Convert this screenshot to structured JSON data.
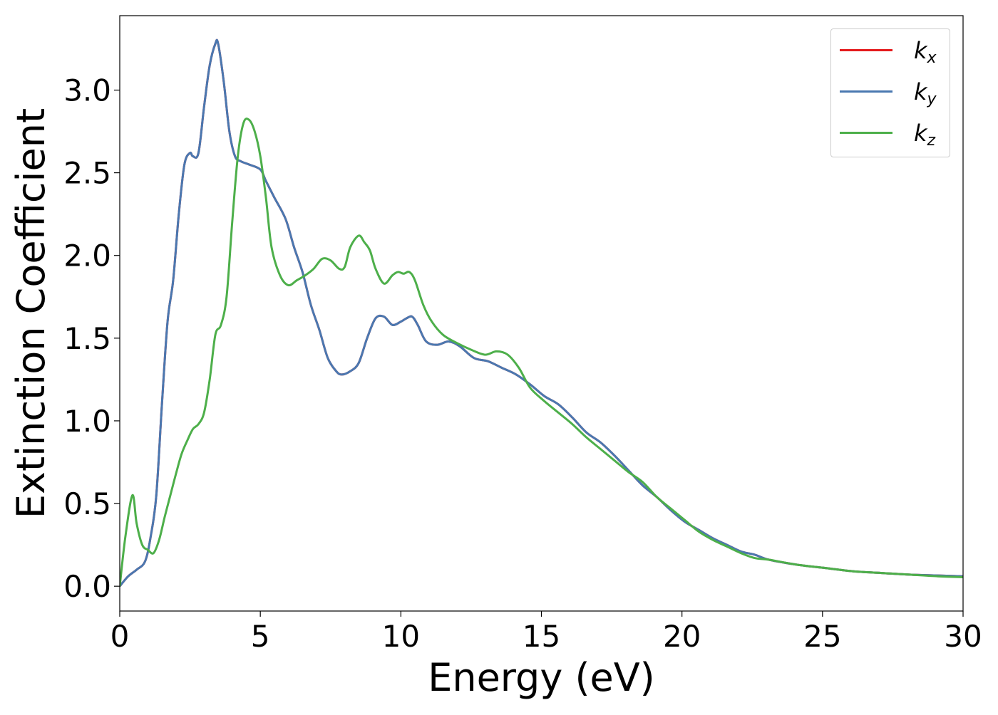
{
  "chart_data": {
    "type": "line",
    "title": "",
    "xlabel": "Energy (eV)",
    "ylabel": "Extinction Coefficient",
    "xlim": [
      0,
      30
    ],
    "ylim": [
      -0.15,
      3.45
    ],
    "xticks": [
      0,
      5,
      10,
      15,
      20,
      25,
      30
    ],
    "xtick_labels": [
      "0",
      "5",
      "10",
      "15",
      "20",
      "25",
      "30"
    ],
    "yticks": [
      0.0,
      0.5,
      1.0,
      1.5,
      2.0,
      2.5,
      3.0
    ],
    "ytick_labels": [
      "0.0",
      "0.5",
      "1.0",
      "1.5",
      "2.0",
      "2.5",
      "3.0"
    ],
    "grid": false,
    "legend_position": "top-right",
    "series": [
      {
        "name": "k_x",
        "label_base": "k",
        "label_sub": "x",
        "color": "#e41a1c",
        "x": [
          0,
          0.3,
          0.6,
          0.9,
          1.1,
          1.3,
          1.5,
          1.7,
          1.9,
          2.1,
          2.3,
          2.5,
          2.6,
          2.8,
          3.0,
          3.2,
          3.4,
          3.5,
          3.7,
          3.9,
          4.1,
          4.3,
          4.6,
          5.0,
          5.2,
          5.5,
          5.9,
          6.2,
          6.5,
          6.8,
          7.1,
          7.4,
          7.7,
          7.9,
          8.2,
          8.5,
          8.8,
          9.1,
          9.4,
          9.7,
          10.0,
          10.2,
          10.4,
          10.6,
          10.9,
          11.3,
          11.7,
          12.1,
          12.6,
          13.1,
          13.6,
          14.1,
          14.6,
          15.1,
          15.6,
          16.1,
          16.6,
          17.1,
          17.6,
          18.1,
          18.6,
          19.1,
          19.6,
          20.1,
          20.6,
          21.1,
          21.6,
          22.1,
          22.6,
          23.1,
          24.1,
          25.1,
          26.1,
          27.1,
          28.1,
          29.1,
          30.0
        ],
        "y": [
          0.0,
          0.06,
          0.1,
          0.15,
          0.3,
          0.55,
          1.1,
          1.6,
          1.85,
          2.25,
          2.55,
          2.62,
          2.6,
          2.62,
          2.9,
          3.15,
          3.28,
          3.28,
          3.05,
          2.75,
          2.6,
          2.57,
          2.55,
          2.52,
          2.45,
          2.35,
          2.22,
          2.05,
          1.9,
          1.7,
          1.55,
          1.38,
          1.3,
          1.28,
          1.3,
          1.35,
          1.5,
          1.62,
          1.63,
          1.58,
          1.6,
          1.62,
          1.63,
          1.58,
          1.48,
          1.46,
          1.48,
          1.45,
          1.38,
          1.36,
          1.32,
          1.28,
          1.22,
          1.15,
          1.1,
          1.02,
          0.93,
          0.87,
          0.79,
          0.7,
          0.61,
          0.54,
          0.46,
          0.39,
          0.34,
          0.29,
          0.25,
          0.21,
          0.19,
          0.16,
          0.13,
          0.11,
          0.09,
          0.08,
          0.07,
          0.065,
          0.06
        ]
      },
      {
        "name": "k_y",
        "label_base": "k",
        "label_sub": "y",
        "color": "#4a78b0",
        "x": [
          0,
          0.3,
          0.6,
          0.9,
          1.1,
          1.3,
          1.5,
          1.7,
          1.9,
          2.1,
          2.3,
          2.5,
          2.6,
          2.8,
          3.0,
          3.2,
          3.4,
          3.5,
          3.7,
          3.9,
          4.1,
          4.3,
          4.6,
          5.0,
          5.2,
          5.5,
          5.9,
          6.2,
          6.5,
          6.8,
          7.1,
          7.4,
          7.7,
          7.9,
          8.2,
          8.5,
          8.8,
          9.1,
          9.4,
          9.7,
          10.0,
          10.2,
          10.4,
          10.6,
          10.9,
          11.3,
          11.7,
          12.1,
          12.6,
          13.1,
          13.6,
          14.1,
          14.6,
          15.1,
          15.6,
          16.1,
          16.6,
          17.1,
          17.6,
          18.1,
          18.6,
          19.1,
          19.6,
          20.1,
          20.6,
          21.1,
          21.6,
          22.1,
          22.6,
          23.1,
          24.1,
          25.1,
          26.1,
          27.1,
          28.1,
          29.1,
          30.0
        ],
        "y": [
          0.0,
          0.06,
          0.1,
          0.15,
          0.3,
          0.55,
          1.1,
          1.6,
          1.85,
          2.25,
          2.55,
          2.62,
          2.6,
          2.62,
          2.9,
          3.15,
          3.28,
          3.28,
          3.05,
          2.75,
          2.6,
          2.57,
          2.55,
          2.52,
          2.45,
          2.35,
          2.22,
          2.05,
          1.9,
          1.7,
          1.55,
          1.38,
          1.3,
          1.28,
          1.3,
          1.35,
          1.5,
          1.62,
          1.63,
          1.58,
          1.6,
          1.62,
          1.63,
          1.58,
          1.48,
          1.46,
          1.48,
          1.45,
          1.38,
          1.36,
          1.32,
          1.28,
          1.22,
          1.15,
          1.1,
          1.02,
          0.93,
          0.87,
          0.79,
          0.7,
          0.61,
          0.54,
          0.46,
          0.39,
          0.34,
          0.29,
          0.25,
          0.21,
          0.19,
          0.16,
          0.13,
          0.11,
          0.09,
          0.08,
          0.07,
          0.065,
          0.06
        ]
      },
      {
        "name": "k_z",
        "label_base": "k",
        "label_sub": "z",
        "color": "#4daf4a",
        "x": [
          0,
          0.2,
          0.45,
          0.6,
          0.8,
          1.0,
          1.2,
          1.4,
          1.6,
          1.8,
          2.0,
          2.2,
          2.4,
          2.6,
          2.8,
          3.0,
          3.2,
          3.4,
          3.6,
          3.8,
          4.0,
          4.2,
          4.4,
          4.6,
          4.8,
          5.0,
          5.2,
          5.4,
          5.7,
          6.0,
          6.3,
          6.6,
          6.9,
          7.2,
          7.5,
          7.8,
          8.0,
          8.2,
          8.5,
          8.7,
          8.9,
          9.1,
          9.4,
          9.7,
          9.9,
          10.1,
          10.3,
          10.5,
          10.8,
          11.1,
          11.5,
          12.0,
          12.5,
          13.0,
          13.4,
          13.8,
          14.2,
          14.6,
          15.1,
          15.6,
          16.1,
          16.6,
          17.1,
          17.6,
          18.1,
          18.6,
          19.1,
          19.6,
          20.1,
          20.6,
          21.1,
          21.6,
          22.1,
          22.6,
          23.1,
          24.1,
          25.1,
          26.1,
          27.1,
          28.1,
          29.1,
          30.0
        ],
        "y": [
          0.0,
          0.3,
          0.55,
          0.38,
          0.25,
          0.22,
          0.2,
          0.28,
          0.42,
          0.55,
          0.68,
          0.8,
          0.88,
          0.95,
          0.98,
          1.05,
          1.25,
          1.52,
          1.58,
          1.75,
          2.2,
          2.6,
          2.8,
          2.82,
          2.75,
          2.6,
          2.35,
          2.05,
          1.88,
          1.82,
          1.85,
          1.88,
          1.92,
          1.98,
          1.97,
          1.92,
          1.93,
          2.05,
          2.12,
          2.08,
          2.03,
          1.92,
          1.83,
          1.88,
          1.9,
          1.89,
          1.9,
          1.85,
          1.7,
          1.6,
          1.52,
          1.47,
          1.43,
          1.4,
          1.42,
          1.4,
          1.32,
          1.2,
          1.12,
          1.05,
          0.98,
          0.9,
          0.83,
          0.76,
          0.69,
          0.63,
          0.54,
          0.47,
          0.4,
          0.33,
          0.28,
          0.24,
          0.2,
          0.17,
          0.16,
          0.13,
          0.11,
          0.09,
          0.08,
          0.07,
          0.06,
          0.055
        ]
      }
    ]
  }
}
